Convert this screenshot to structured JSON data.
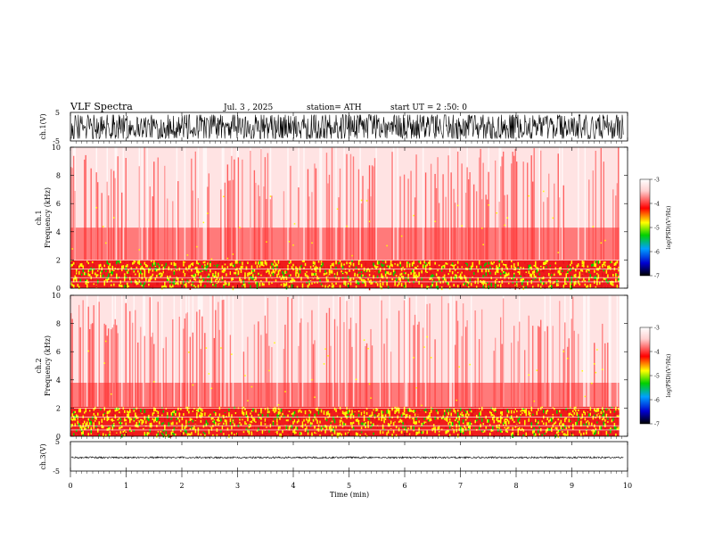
{
  "header": {
    "title": "VLF  Spectra",
    "date": "Jul.  3   , 2025",
    "station": "station= ATH",
    "start": "start  UT  =   2  :50: 0"
  },
  "chart_data": [
    {
      "type": "line",
      "name": "ch1-waveform",
      "ylabel": "ch.1(V)",
      "ylim": [
        -5,
        5
      ],
      "yticks": [
        "5",
        "-5"
      ],
      "xlim": [
        0,
        10
      ],
      "amplitude": 4.2
    },
    {
      "type": "heatmap",
      "name": "ch1-spectrogram",
      "ylabel": "ch.1",
      "ylabel2": "Frequency  (kHz)",
      "ylim": [
        0,
        10
      ],
      "yticks": [
        "0",
        "2",
        "4",
        "6",
        "8",
        "10"
      ],
      "xlim": [
        0,
        9.85
      ],
      "colorbar": {
        "label": "log(PSD)(V²/Hz)",
        "range": [
          -7,
          -3
        ],
        "ticks": [
          "-3",
          "-4",
          "-5",
          "-6",
          "-7"
        ]
      },
      "bands": [
        {
          "from": 0,
          "to": 2,
          "level": -4.4,
          "note": "strong emission, yellow/green"
        },
        {
          "from": 2,
          "to": 4.3,
          "level": -3.8
        },
        {
          "from": 4.3,
          "to": 10,
          "level": -3.4
        }
      ],
      "colors": [
        "#ffffff",
        "#ffd8d8",
        "#ff2a2a",
        "#e4101a",
        "#ffff00",
        "#00d000",
        "#0050ff",
        "#000000"
      ]
    },
    {
      "type": "heatmap",
      "name": "ch2-spectrogram",
      "ylabel": "ch.2",
      "ylabel2": "Frequency  (kHz)",
      "ylim": [
        0,
        10
      ],
      "yticks": [
        "0",
        "2",
        "4",
        "6",
        "8",
        "10"
      ],
      "xlim": [
        0,
        9.85
      ],
      "colorbar": {
        "label": "log(PSD)(V²/Hz)",
        "range": [
          -7,
          -3
        ],
        "ticks": [
          "-3",
          "-4",
          "-5",
          "-6",
          "-7"
        ]
      },
      "bands": [
        {
          "from": 0,
          "to": 2.1,
          "level": -4.3,
          "note": "strong emission, yellow/green"
        },
        {
          "from": 2.1,
          "to": 3.8,
          "level": -3.8
        },
        {
          "from": 3.8,
          "to": 10,
          "level": -3.4
        }
      ],
      "colors": [
        "#ffffff",
        "#ffd8d8",
        "#ff2a2a",
        "#e4101a",
        "#ffff00",
        "#00d000",
        "#0050ff",
        "#000000"
      ]
    },
    {
      "type": "line",
      "name": "ch3-waveform",
      "ylabel": "ch.3(V)",
      "ylim": [
        -5,
        5
      ],
      "yticks": [
        "5",
        "-5"
      ],
      "xlim": [
        0,
        10
      ],
      "amplitude": 0.3,
      "offset": -0.4
    }
  ],
  "xaxis": {
    "label": "Time  (min)",
    "ticks": [
      "0",
      "1",
      "2",
      "3",
      "4",
      "5",
      "6",
      "7",
      "8",
      "9",
      "10"
    ],
    "range": [
      0,
      10
    ]
  }
}
